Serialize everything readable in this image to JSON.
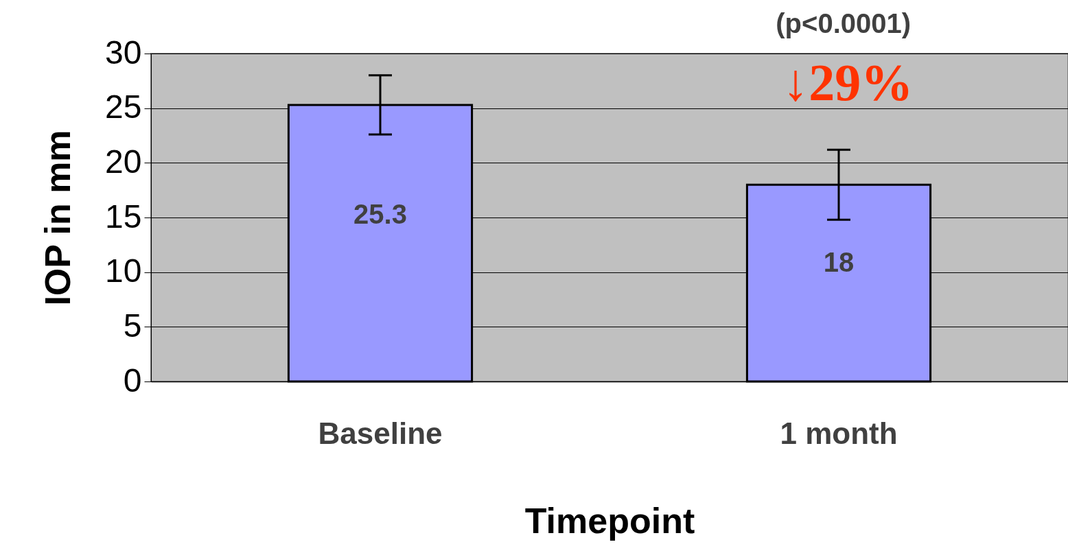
{
  "chart_data": {
    "type": "bar",
    "xlabel": "Timepoint",
    "ylabel": "IOP in mm",
    "categories": [
      "Baseline",
      "1 month"
    ],
    "values": [
      25.3,
      18
    ],
    "errors": [
      2.7,
      3.2
    ],
    "color": "#9999ff",
    "ylim": [
      0,
      30
    ],
    "yticks": [
      0,
      5,
      10,
      15,
      20,
      25,
      30
    ],
    "grid": "y",
    "data_labels": true,
    "annotations": [
      "(p<0.0001)",
      "↓29%"
    ]
  }
}
